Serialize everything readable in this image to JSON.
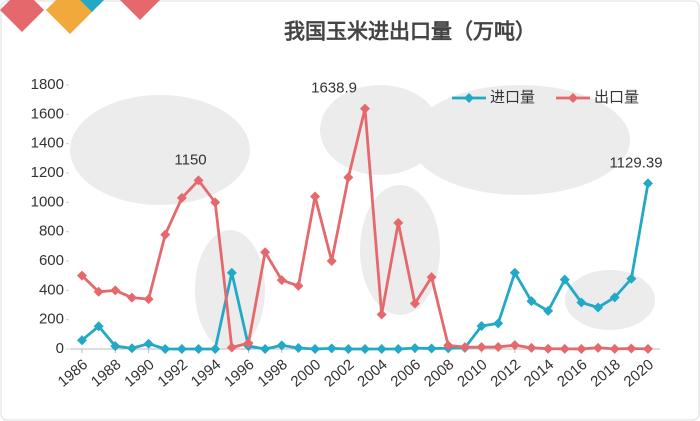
{
  "chart_data": {
    "type": "line",
    "title": "我国玉米进出口量（万吨）",
    "x": [
      1986,
      1987,
      1988,
      1989,
      1990,
      1991,
      1992,
      1993,
      1994,
      1995,
      1996,
      1997,
      1998,
      1999,
      2000,
      2001,
      2002,
      2003,
      2004,
      2005,
      2006,
      2007,
      2008,
      2009,
      2010,
      2011,
      2012,
      2013,
      2014,
      2015,
      2016,
      2017,
      2018,
      2019,
      2020
    ],
    "xlim": [
      1986,
      2020
    ],
    "xticks": [
      1986,
      1988,
      1990,
      1992,
      1994,
      1996,
      1998,
      2000,
      2002,
      2004,
      2006,
      2008,
      2010,
      2012,
      2014,
      2016,
      2018,
      2020
    ],
    "ylim": [
      0,
      1800
    ],
    "yticks": [
      0,
      200,
      400,
      600,
      800,
      1000,
      1200,
      1400,
      1600,
      1800
    ],
    "legend": "top-right",
    "series": [
      {
        "name": "进口量",
        "color": "#22a9c6",
        "values": [
          60,
          155,
          20,
          5,
          36,
          0,
          0,
          0,
          0,
          520,
          20,
          0,
          25,
          7,
          0,
          4,
          0,
          0,
          0,
          0,
          6,
          3,
          5,
          8,
          157,
          175,
          520,
          326,
          260,
          473,
          317,
          283,
          352,
          479,
          1129.39
        ],
        "value_labels": [
          null,
          null,
          null,
          null,
          null,
          null,
          null,
          null,
          null,
          null,
          null,
          null,
          null,
          null,
          null,
          null,
          null,
          null,
          null,
          null,
          null,
          null,
          null,
          null,
          null,
          null,
          null,
          null,
          null,
          null,
          null,
          null,
          null,
          null,
          "1129.39"
        ]
      },
      {
        "name": "出口量",
        "color": "#e5696c",
        "values": [
          500,
          390,
          400,
          350,
          340,
          780,
          1030,
          1150,
          1000,
          10,
          40,
          660,
          470,
          430,
          1040,
          600,
          1170,
          1638.9,
          235,
          860,
          310,
          490,
          25,
          13,
          13,
          14,
          26,
          8,
          2,
          1,
          0.4,
          8,
          1,
          3,
          1
        ],
        "value_labels": [
          null,
          null,
          null,
          null,
          null,
          null,
          null,
          "1150",
          null,
          null,
          null,
          null,
          null,
          null,
          null,
          null,
          null,
          "1638.9",
          null,
          null,
          null,
          null,
          null,
          null,
          null,
          null,
          null,
          null,
          null,
          null,
          null,
          null,
          null,
          null,
          null
        ]
      }
    ]
  }
}
